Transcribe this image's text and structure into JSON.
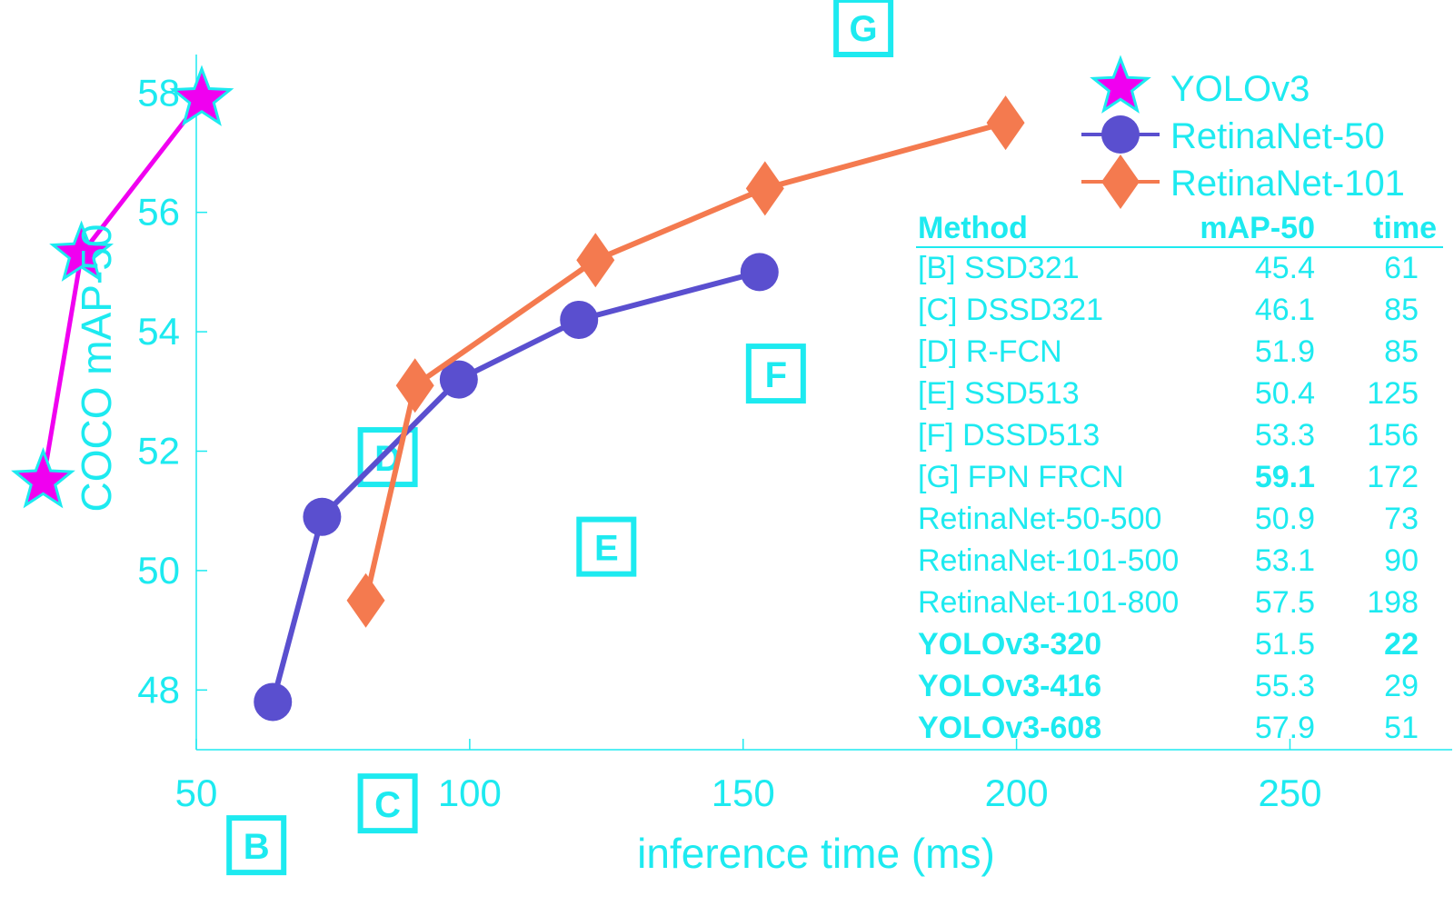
{
  "chart_data": {
    "type": "line",
    "xlabel": "inference time (ms)",
    "ylabel": "COCO mAP-50",
    "xlim": [
      50,
      280
    ],
    "ylim": [
      47,
      59.1
    ],
    "xticks": [
      50,
      100,
      150,
      200,
      250
    ],
    "yticks": [
      48,
      50,
      52,
      54,
      56,
      58
    ],
    "grid": false,
    "legend_position": "top-right",
    "colors": {
      "text": "#1DEAF0",
      "axis": "#1DEAF0",
      "yolo": "#F000F0",
      "yolo_edge": "#1DEAF0",
      "retina50": "#5A4FCF",
      "retina101": "#F47A4F"
    },
    "series": [
      {
        "name": "YOLOv3",
        "marker": "star",
        "x": [
          22,
          29,
          51
        ],
        "y": [
          51.5,
          55.3,
          57.9
        ]
      },
      {
        "name": "RetinaNet-50",
        "marker": "circle",
        "x": [
          64,
          73,
          98,
          120,
          153
        ],
        "y": [
          47.8,
          50.9,
          53.2,
          54.2,
          55.0
        ]
      },
      {
        "name": "RetinaNet-101",
        "marker": "diamond",
        "x": [
          81,
          90,
          123,
          154,
          198
        ],
        "y": [
          49.5,
          53.1,
          55.2,
          56.4,
          57.5
        ]
      }
    ],
    "point_labels": [
      {
        "label": "B",
        "x": 61,
        "y": 45.4
      },
      {
        "label": "C",
        "x": 85,
        "y": 46.1
      },
      {
        "label": "D",
        "x": 85,
        "y": 51.9
      },
      {
        "label": "E",
        "x": 125,
        "y": 50.4
      },
      {
        "label": "F",
        "x": 156,
        "y": 53.3
      },
      {
        "label": "G",
        "x": 172,
        "y": 59.1
      }
    ],
    "table": {
      "headers": [
        "Method",
        "mAP-50",
        "time"
      ],
      "rows": [
        {
          "method": "[B] SSD321",
          "map": "45.4",
          "time": "61",
          "method_bold": false,
          "map_bold": false,
          "time_bold": false
        },
        {
          "method": "[C] DSSD321",
          "map": "46.1",
          "time": "85",
          "method_bold": false,
          "map_bold": false,
          "time_bold": false
        },
        {
          "method": "[D] R-FCN",
          "map": "51.9",
          "time": "85",
          "method_bold": false,
          "map_bold": false,
          "time_bold": false
        },
        {
          "method": "[E] SSD513",
          "map": "50.4",
          "time": "125",
          "method_bold": false,
          "map_bold": false,
          "time_bold": false
        },
        {
          "method": "[F] DSSD513",
          "map": "53.3",
          "time": "156",
          "method_bold": false,
          "map_bold": false,
          "time_bold": false
        },
        {
          "method": "[G] FPN FRCN",
          "map": "59.1",
          "time": "172",
          "method_bold": false,
          "map_bold": true,
          "time_bold": false
        },
        {
          "method": "RetinaNet-50-500",
          "map": "50.9",
          "time": "73",
          "method_bold": false,
          "map_bold": false,
          "time_bold": false
        },
        {
          "method": "RetinaNet-101-500",
          "map": "53.1",
          "time": "90",
          "method_bold": false,
          "map_bold": false,
          "time_bold": false
        },
        {
          "method": "RetinaNet-101-800",
          "map": "57.5",
          "time": "198",
          "method_bold": false,
          "map_bold": false,
          "time_bold": false
        },
        {
          "method": "YOLOv3-320",
          "map": "51.5",
          "time": "22",
          "method_bold": true,
          "map_bold": false,
          "time_bold": true
        },
        {
          "method": "YOLOv3-416",
          "map": "55.3",
          "time": "29",
          "method_bold": true,
          "map_bold": false,
          "time_bold": false
        },
        {
          "method": "YOLOv3-608",
          "map": "57.9",
          "time": "51",
          "method_bold": true,
          "map_bold": false,
          "time_bold": false
        }
      ]
    }
  }
}
